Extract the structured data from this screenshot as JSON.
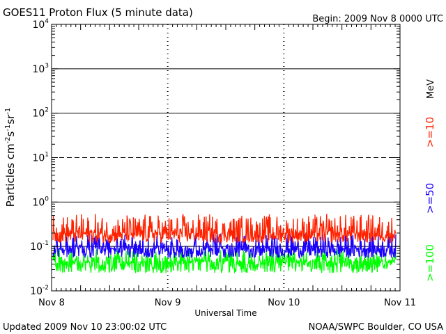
{
  "header": {
    "title": "GOES11 Proton Flux (5 minute data)",
    "begin": "Begin: 2009 Nov 8 0000 UTC"
  },
  "footer": {
    "updated": "Updated 2009 Nov 10 23:00:02 UTC",
    "credit": "NOAA/SWPC Boulder, CO USA"
  },
  "chart_data": {
    "type": "line",
    "title": "GOES11 Proton Flux (5 minute data)",
    "xlabel": "Universal Time",
    "ylabel": "Particles cm⁻²s⁻¹sr⁻¹",
    "ylabel_parts": [
      "Particles cm",
      "-2",
      "s",
      "-1",
      "sr",
      "-1"
    ],
    "y_scale": "log",
    "ylim": [
      0.01,
      10000
    ],
    "y_ticks": [
      {
        "base": "10",
        "exp": "4"
      },
      {
        "base": "10",
        "exp": "3"
      },
      {
        "base": "10",
        "exp": "2"
      },
      {
        "base": "10",
        "exp": "1"
      },
      {
        "base": "10",
        "exp": "0"
      },
      {
        "base": "10",
        "exp": "-1"
      },
      {
        "base": "10",
        "exp": "-2"
      }
    ],
    "x_range": [
      "2009-11-08 00:00",
      "2009-11-11 00:00"
    ],
    "x_ticks": [
      "Nov 8",
      "Nov 9",
      "Nov 10",
      "Nov 11"
    ],
    "unit_label": "MeV",
    "threshold_lines": [
      {
        "value": 1000,
        "style": "solid"
      },
      {
        "value": 100,
        "style": "solid"
      },
      {
        "value": 10,
        "style": "dashed"
      },
      {
        "value": 1,
        "style": "solid"
      },
      {
        "value": 0.1,
        "style": "solid"
      }
    ],
    "series": [
      {
        "name": ">=10",
        "color": "#ff2200",
        "baseline": 0.2,
        "range": [
          0.12,
          0.55
        ]
      },
      {
        "name": ">=50",
        "color": "#1a00ff",
        "baseline": 0.09,
        "range": [
          0.055,
          0.2
        ]
      },
      {
        "name": ">=100",
        "color": "#00ff00",
        "baseline": 0.045,
        "range": [
          0.025,
          0.09
        ]
      }
    ]
  }
}
